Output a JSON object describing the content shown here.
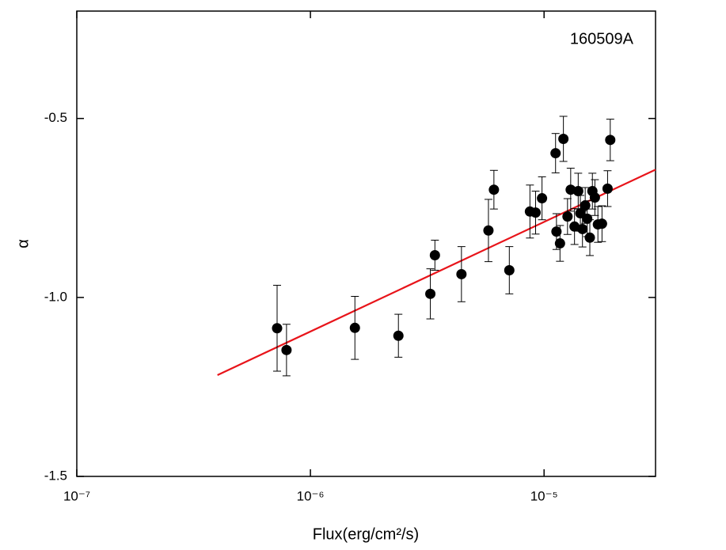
{
  "chart_data": {
    "type": "scatter",
    "annotation": "160509A",
    "x_label": "Flux(erg/cm²/s)",
    "y_label": "α",
    "xscale": "log",
    "xlim": [
      1e-07,
      3e-05
    ],
    "ylim": [
      -1.5,
      -0.2
    ],
    "xticks": [
      {
        "value": 1e-07,
        "label": "10⁻⁷"
      },
      {
        "value": 1e-06,
        "label": "10⁻⁶"
      },
      {
        "value": 1e-05,
        "label": "10⁻⁵"
      }
    ],
    "yticks": [
      -0.5,
      {
        "value": -1,
        "label": "-1.0"
      },
      -1.5
    ],
    "color": "#000000",
    "x": [
      7.2e-07,
      7.9e-07,
      1.55e-06,
      2.38e-06,
      3.26e-06,
      3.41e-06,
      4.43e-06,
      5.78e-06,
      6.1e-06,
      7.1e-06,
      8.7e-06,
      9.2e-06,
      9.8e-06,
      1.12e-05,
      1.13e-05,
      1.17e-05,
      1.21e-05,
      1.26e-05,
      1.3e-05,
      1.35e-05,
      1.4e-05,
      1.43e-05,
      1.46e-05,
      1.5e-05,
      1.53e-05,
      1.57e-05,
      1.61e-05,
      1.65e-05,
      1.7e-05,
      1.77e-05,
      1.87e-05,
      1.92e-05
    ],
    "values": [
      -1.086,
      -1.147,
      -1.085,
      -1.107,
      -0.99,
      -0.882,
      -0.935,
      -0.813,
      -0.699,
      -0.924,
      -0.76,
      -0.763,
      -0.723,
      -0.597,
      -0.816,
      -0.849,
      -0.557,
      -0.774,
      -0.699,
      -0.802,
      -0.703,
      -0.765,
      -0.809,
      -0.743,
      -0.78,
      -0.833,
      -0.703,
      -0.721,
      -0.796,
      -0.794,
      -0.696,
      -0.56
    ],
    "errors": [
      0.12,
      0.072,
      0.088,
      0.06,
      0.07,
      0.042,
      0.077,
      0.087,
      0.054,
      0.066,
      0.074,
      0.06,
      0.06,
      0.055,
      0.05,
      0.05,
      0.063,
      0.05,
      0.06,
      0.05,
      0.05,
      0.05,
      0.05,
      0.05,
      0.05,
      0.05,
      0.05,
      0.05,
      0.05,
      0.05,
      0.05,
      0.058
    ],
    "fit": {
      "color": "#e8141a",
      "x": [
        4e-07,
        3e-05
      ],
      "y": [
        -1.217,
        -0.643
      ]
    }
  }
}
